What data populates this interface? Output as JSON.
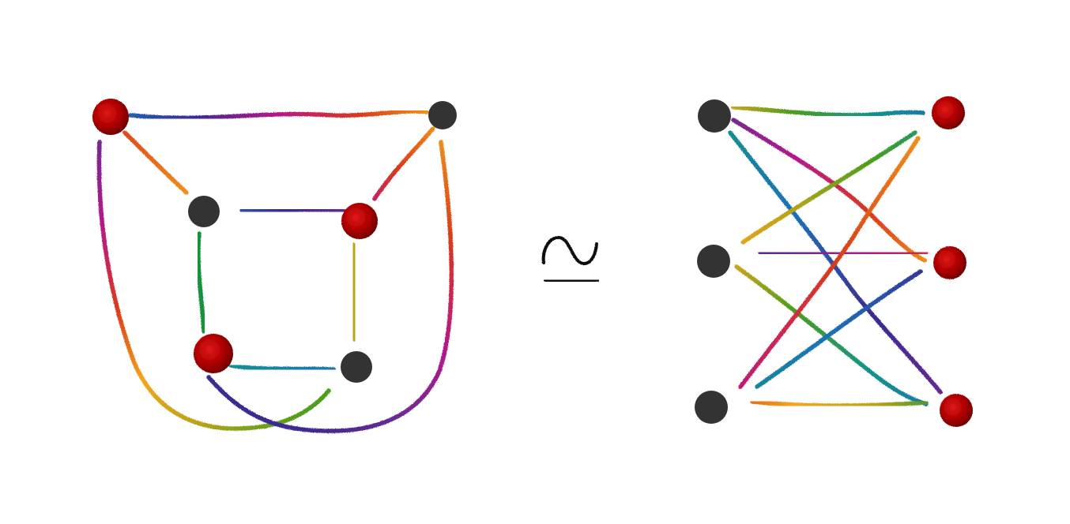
{
  "diagram": {
    "relation_symbol": "≃",
    "colors": {
      "dark_vertex": "#333333",
      "red_vertex": "#b00000",
      "red_vertex_dark": "#6a0000",
      "red_vertex_light": "#e01818"
    },
    "left_graph": {
      "vertices": [
        {
          "id": "L1",
          "kind": "red"
        },
        {
          "id": "L2",
          "kind": "dark"
        },
        {
          "id": "L3",
          "kind": "dark"
        },
        {
          "id": "L4",
          "kind": "red"
        },
        {
          "id": "L5",
          "kind": "red"
        },
        {
          "id": "L6",
          "kind": "dark"
        }
      ],
      "edges": [
        {
          "from": "L1",
          "to": "L2",
          "colors": [
            "#1d6fb8",
            "#3a2b8f",
            "#b5178a",
            "#d83a1c",
            "#f2a51c"
          ]
        },
        {
          "from": "L1",
          "to": "L3",
          "colors": [
            "#d83a1c",
            "#f2a51c"
          ]
        },
        {
          "from": "L2",
          "to": "L4",
          "colors": [
            "#f2a51c",
            "#d83a1c",
            "#b5178a"
          ]
        },
        {
          "from": "L3",
          "to": "L4",
          "colors": [
            "#1d6fb8",
            "#3a2b8f",
            "#6a2c91"
          ]
        },
        {
          "from": "L3",
          "to": "L5",
          "colors": [
            "#19923c"
          ]
        },
        {
          "from": "L4",
          "to": "L6",
          "colors": [
            "#b8a419"
          ]
        },
        {
          "from": "L5",
          "to": "L6",
          "colors": [
            "#11938a",
            "#1d6fb8"
          ]
        },
        {
          "from": "L1",
          "to": "L6",
          "colors": [
            "#6a2c91",
            "#b5178a",
            "#d83a1c",
            "#f2a51c",
            "#b8a419",
            "#4a9e1c"
          ]
        },
        {
          "from": "L5",
          "to": "L2",
          "colors": [
            "#3a2b8f",
            "#6a2c91",
            "#b5178a",
            "#d83a1c",
            "#f2a51c"
          ]
        }
      ]
    },
    "right_graph": {
      "vertices": [
        {
          "id": "A1",
          "kind": "dark"
        },
        {
          "id": "A2",
          "kind": "dark"
        },
        {
          "id": "A3",
          "kind": "dark"
        },
        {
          "id": "B1",
          "kind": "red"
        },
        {
          "id": "B2",
          "kind": "red"
        },
        {
          "id": "B3",
          "kind": "red"
        }
      ],
      "edges": [
        {
          "from": "A1",
          "to": "B1",
          "colors": [
            "#f2a51c",
            "#4a9e1c",
            "#11938a",
            "#1d6fb8"
          ]
        },
        {
          "from": "A1",
          "to": "B2",
          "colors": [
            "#6a2c91",
            "#b5178a",
            "#d83a1c",
            "#f2a51c"
          ]
        },
        {
          "from": "A1",
          "to": "B3",
          "colors": [
            "#11938a",
            "#1d6fb8",
            "#3a2b8f",
            "#6a2c91"
          ]
        },
        {
          "from": "A2",
          "to": "B1",
          "colors": [
            "#f2a51c",
            "#b8a419",
            "#4a9e1c",
            "#11938a"
          ]
        },
        {
          "from": "A2",
          "to": "B2",
          "colors": [
            "#3a2b8f",
            "#6a2c91",
            "#b5178a",
            "#d83a1c"
          ]
        },
        {
          "from": "A2",
          "to": "B3",
          "colors": [
            "#f2a51c",
            "#4a9e1c",
            "#11938a",
            "#1d6fb8"
          ]
        },
        {
          "from": "A3",
          "to": "B1",
          "colors": [
            "#b5178a",
            "#d83a1c",
            "#f2a51c"
          ]
        },
        {
          "from": "A3",
          "to": "B2",
          "colors": [
            "#11938a",
            "#1d6fb8",
            "#3a2b8f"
          ]
        },
        {
          "from": "A3",
          "to": "B3",
          "colors": [
            "#d83a1c",
            "#f2a51c",
            "#b8a419",
            "#19923c"
          ]
        }
      ]
    }
  }
}
